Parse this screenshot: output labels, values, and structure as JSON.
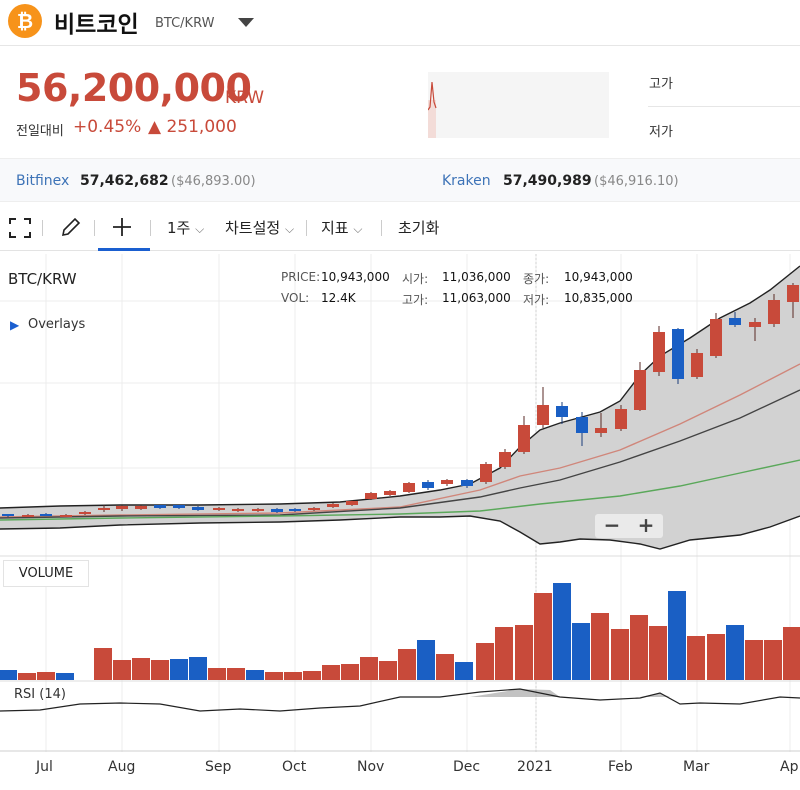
{
  "header": {
    "coin_icon": "₿",
    "coin_name": "비트코인",
    "pair": "BTC/KRW",
    "dropdown_icon": "caret-down-icon"
  },
  "price": {
    "value": "56,200,000",
    "unit": "KRW",
    "prev_label": "전일대비",
    "change_pct": "+0.45%",
    "change_abs": "▲ 251,000"
  },
  "high_low": {
    "high_label": "고가",
    "low_label": "저가"
  },
  "exchanges": [
    {
      "name": "Bitfinex",
      "krw": "57,462,682",
      "usd": "($46,893.00)"
    },
    {
      "name": "Kraken",
      "krw": "57,490,989",
      "usd": "($46,916.10)"
    }
  ],
  "toolbar": {
    "period": "1주",
    "chart_settings": "차트설정",
    "indicators": "지표",
    "reset": "초기화",
    "period_chevron": "⌵"
  },
  "chart": {
    "pair_label": "BTC/KRW",
    "overlays_label": "Overlays",
    "price_label": "PRICE:",
    "price_value": "10,943,000",
    "vol_label": "VOL:",
    "vol_value": "12.4K",
    "open_label": "시가:",
    "open_value": "11,036,000",
    "high_label": "고가:",
    "high_value": "11,063,000",
    "close_label": "종가:",
    "close_value": "10,943,000",
    "low_label": "저가:",
    "low_value": "10,835,000",
    "volume_label": "VOLUME",
    "rsi_label": "RSI (14)",
    "zoom_out": "−",
    "zoom_in": "+",
    "x_labels": [
      "Jul",
      "Aug",
      "Sep",
      "Oct",
      "Nov",
      "Dec",
      "2021",
      "Feb",
      "Mar",
      "Ap"
    ]
  },
  "colors": {
    "up": "#c84a3a",
    "down": "#1a5fc4",
    "accent": "#1a5fd0",
    "ma_short": "#d0867a",
    "ma_mid": "#444444",
    "ma_long": "#5aa85a"
  }
}
